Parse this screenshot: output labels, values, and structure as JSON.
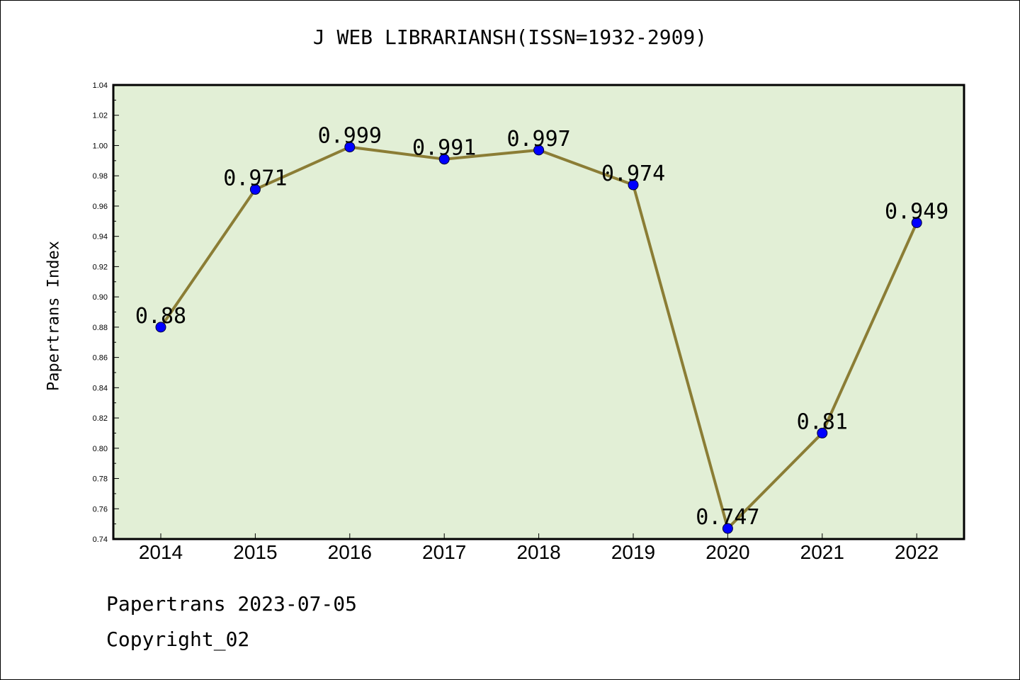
{
  "title": "J WEB LIBRARIANSH(ISSN=1932-2909)",
  "footer": {
    "date_line": "Papertrans 2023-07-05",
    "copyright": "Copyright_02"
  },
  "colors": {
    "plot_background": "#e2efd6",
    "line": "#8b7d35",
    "marker": "#0000ff"
  },
  "chart_data": {
    "type": "line",
    "title": "J WEB LIBRARIANSH(ISSN=1932-2909)",
    "xlabel": "",
    "ylabel": "Papertrans Index",
    "categories": [
      "2014",
      "2015",
      "2016",
      "2017",
      "2018",
      "2019",
      "2020",
      "2021",
      "2022"
    ],
    "series": [
      {
        "values": [
          0.88,
          0.971,
          0.999,
          0.991,
          0.997,
          0.974,
          0.747,
          0.81,
          0.949
        ],
        "labels": [
          "0.88",
          "0.971",
          "0.999",
          "0.991",
          "0.997",
          "0.974",
          "0.747",
          "0.81",
          "0.949"
        ]
      }
    ],
    "ylim": [
      0.74,
      1.04
    ],
    "yticks": [
      "0.74",
      "0.76",
      "0.78",
      "0.80",
      "0.82",
      "0.84",
      "0.86",
      "0.88",
      "0.90",
      "0.92",
      "0.94",
      "0.96",
      "0.98",
      "1.00",
      "1.02",
      "1.04"
    ],
    "grid": false,
    "legend": "none"
  }
}
